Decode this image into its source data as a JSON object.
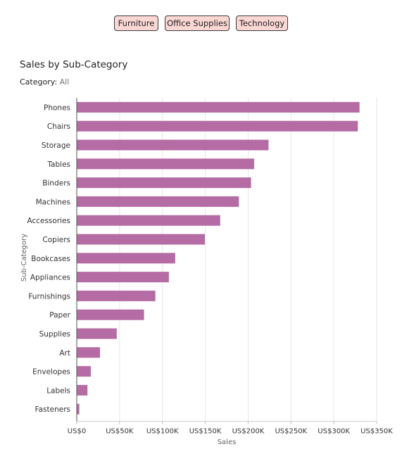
{
  "filters": {
    "buttons": [
      "Furniture",
      "Office Supplies",
      "Technology"
    ]
  },
  "header": {
    "title": "Sales by Sub-Category",
    "category_label": "Category:",
    "category_value": "All"
  },
  "colors": {
    "bar": "#b56ba3",
    "button_bg": "#fbd7d4",
    "grid": "#e6e6e6",
    "axis": "#555555"
  },
  "chart_data": {
    "type": "bar",
    "orientation": "horizontal",
    "title": "Sales by Sub-Category",
    "xlabel": "Sales",
    "ylabel": "Sub-Category",
    "xlim": [
      0,
      350000
    ],
    "xticks": [
      0,
      50000,
      100000,
      150000,
      200000,
      250000,
      300000,
      350000
    ],
    "xtick_labels": [
      "US$0",
      "US$50K",
      "US$100K",
      "US$150K",
      "US$200K",
      "US$250K",
      "US$300K",
      "US$350K"
    ],
    "grid": "vertical",
    "categories": [
      "Phones",
      "Chairs",
      "Storage",
      "Tables",
      "Binders",
      "Machines",
      "Accessories",
      "Copiers",
      "Bookcases",
      "Appliances",
      "Furnishings",
      "Paper",
      "Supplies",
      "Art",
      "Envelopes",
      "Labels",
      "Fasteners"
    ],
    "values": [
      330000,
      328000,
      223800,
      207000,
      203400,
      189200,
      167400,
      149500,
      114900,
      107500,
      91700,
      78500,
      46700,
      27100,
      16500,
      12500,
      3000
    ]
  }
}
